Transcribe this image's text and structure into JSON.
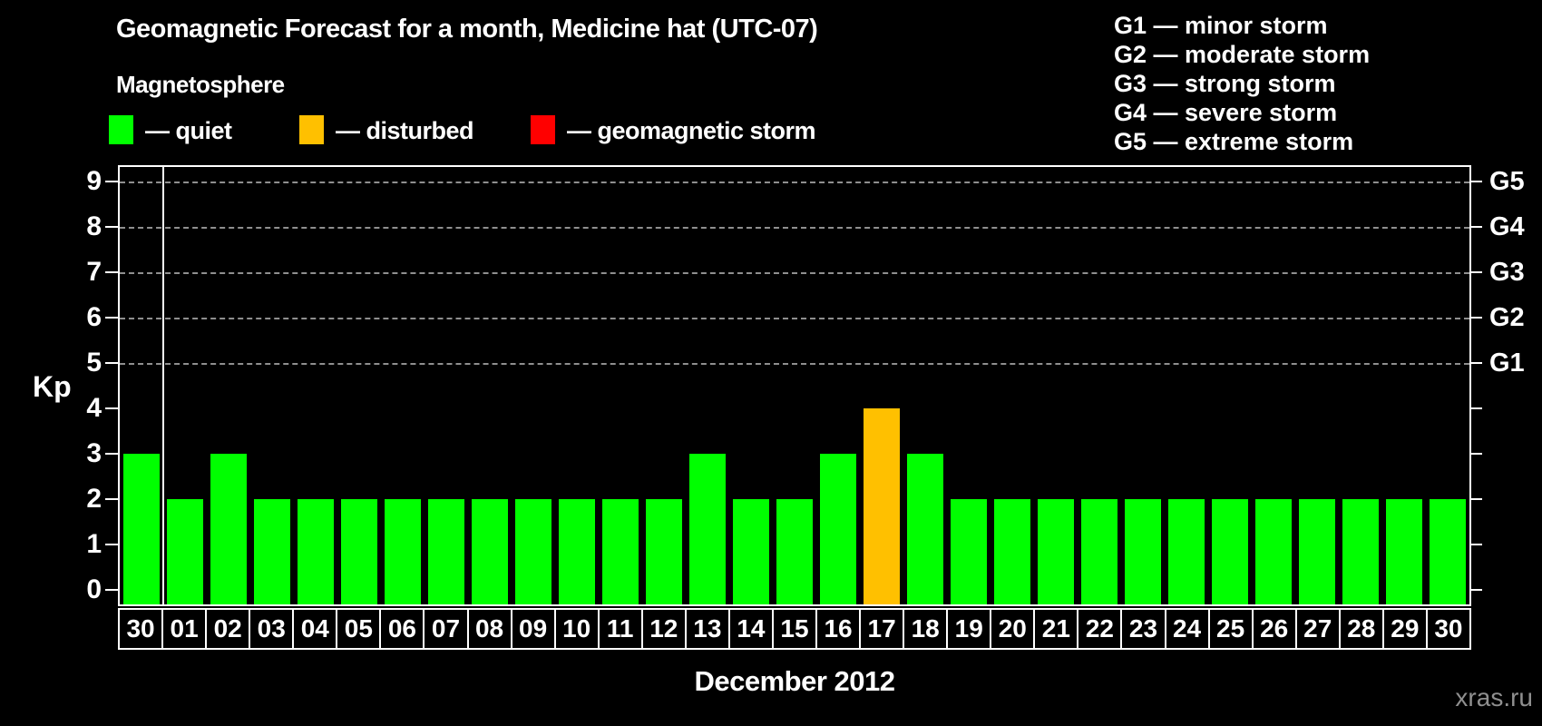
{
  "header": {
    "title": "Geomagnetic Forecast for a month, Medicine hat (UTC-07)",
    "subtitle": "Magnetosphere"
  },
  "colors": {
    "quiet": "#00ff00",
    "disturbed": "#ffc000",
    "storm": "#ff0000",
    "grid": "#8f8f8f",
    "axis": "#ffffff",
    "watermark": "#8f8f8f"
  },
  "legend": [
    {
      "status": "quiet",
      "label": "— quiet"
    },
    {
      "status": "disturbed",
      "label": "— disturbed"
    },
    {
      "status": "storm",
      "label": "— geomagnetic storm"
    }
  ],
  "g_legend": [
    "G1 — minor storm",
    "G2 — moderate storm",
    "G3 — strong storm",
    "G4 — severe storm",
    "G5 — extreme storm"
  ],
  "axis": {
    "ylabel": "Kp",
    "left_ticks": [
      "0",
      "1",
      "2",
      "3",
      "4",
      "5",
      "6",
      "7",
      "8",
      "9"
    ],
    "right_labels": [
      {
        "label": "G1",
        "kp": 5
      },
      {
        "label": "G2",
        "kp": 6
      },
      {
        "label": "G3",
        "kp": 7
      },
      {
        "label": "G4",
        "kp": 8
      },
      {
        "label": "G5",
        "kp": 9
      }
    ],
    "xlabel": "December 2012"
  },
  "watermark": "xras.ru",
  "chart_data": {
    "type": "bar",
    "title": "Geomagnetic Forecast for a month, Medicine hat (UTC-07)",
    "xlabel": "December 2012",
    "ylabel": "Kp",
    "ylim": [
      0,
      9.4
    ],
    "grid": "horizontal dashed lines at Kp 5,6,7,8,9 (G1–G5 levels)",
    "legend_position": "top",
    "categories": [
      "30",
      "01",
      "02",
      "03",
      "04",
      "05",
      "06",
      "07",
      "08",
      "09",
      "10",
      "11",
      "12",
      "13",
      "14",
      "15",
      "16",
      "17",
      "18",
      "19",
      "20",
      "21",
      "22",
      "23",
      "24",
      "25",
      "26",
      "27",
      "28",
      "29",
      "30"
    ],
    "values": [
      3,
      2,
      3,
      2,
      2,
      2,
      2,
      2,
      2,
      2,
      2,
      2,
      2,
      3,
      2,
      2,
      3,
      4,
      3,
      2,
      2,
      2,
      2,
      2,
      2,
      2,
      2,
      2,
      2,
      2,
      2
    ],
    "bars": [
      {
        "day": "30",
        "kp": 3,
        "status": "quiet"
      },
      {
        "day": "01",
        "kp": 2,
        "status": "quiet"
      },
      {
        "day": "02",
        "kp": 3,
        "status": "quiet"
      },
      {
        "day": "03",
        "kp": 2,
        "status": "quiet"
      },
      {
        "day": "04",
        "kp": 2,
        "status": "quiet"
      },
      {
        "day": "05",
        "kp": 2,
        "status": "quiet"
      },
      {
        "day": "06",
        "kp": 2,
        "status": "quiet"
      },
      {
        "day": "07",
        "kp": 2,
        "status": "quiet"
      },
      {
        "day": "08",
        "kp": 2,
        "status": "quiet"
      },
      {
        "day": "09",
        "kp": 2,
        "status": "quiet"
      },
      {
        "day": "10",
        "kp": 2,
        "status": "quiet"
      },
      {
        "day": "11",
        "kp": 2,
        "status": "quiet"
      },
      {
        "day": "12",
        "kp": 2,
        "status": "quiet"
      },
      {
        "day": "13",
        "kp": 3,
        "status": "quiet"
      },
      {
        "day": "14",
        "kp": 2,
        "status": "quiet"
      },
      {
        "day": "15",
        "kp": 2,
        "status": "quiet"
      },
      {
        "day": "16",
        "kp": 3,
        "status": "quiet"
      },
      {
        "day": "17",
        "kp": 4,
        "status": "disturbed"
      },
      {
        "day": "18",
        "kp": 3,
        "status": "quiet"
      },
      {
        "day": "19",
        "kp": 2,
        "status": "quiet"
      },
      {
        "day": "20",
        "kp": 2,
        "status": "quiet"
      },
      {
        "day": "21",
        "kp": 2,
        "status": "quiet"
      },
      {
        "day": "22",
        "kp": 2,
        "status": "quiet"
      },
      {
        "day": "23",
        "kp": 2,
        "status": "quiet"
      },
      {
        "day": "24",
        "kp": 2,
        "status": "quiet"
      },
      {
        "day": "25",
        "kp": 2,
        "status": "quiet"
      },
      {
        "day": "26",
        "kp": 2,
        "status": "quiet"
      },
      {
        "day": "27",
        "kp": 2,
        "status": "quiet"
      },
      {
        "day": "28",
        "kp": 2,
        "status": "quiet"
      },
      {
        "day": "29",
        "kp": 2,
        "status": "quiet"
      },
      {
        "day": "30",
        "kp": 2,
        "status": "quiet"
      }
    ]
  }
}
